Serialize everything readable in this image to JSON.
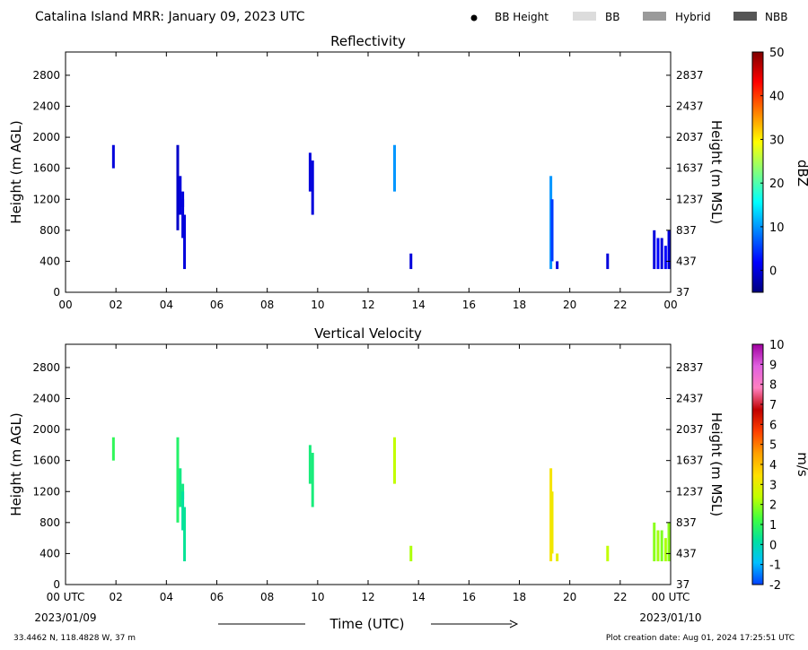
{
  "header": {
    "title": "Catalina Island MRR:  January 09, 2023 UTC",
    "legend": [
      {
        "kind": "dot",
        "label": "BB Height",
        "color": "#000000"
      },
      {
        "kind": "swatch",
        "label": "BB",
        "color": "#dcdcdc"
      },
      {
        "kind": "swatch",
        "label": "Hybrid",
        "color": "#9a9a9a"
      },
      {
        "kind": "swatch",
        "label": "NBB",
        "color": "#555555"
      }
    ]
  },
  "x_axis": {
    "tick_labels": [
      "00",
      "02",
      "04",
      "06",
      "08",
      "10",
      "12",
      "14",
      "16",
      "18",
      "20",
      "22",
      "00"
    ],
    "bottom_first_label": "00 UTC",
    "bottom_last_label": "00 UTC",
    "start_date": "2023/01/09",
    "end_date": "2023/01/10",
    "label": "Time (UTC)"
  },
  "footer": {
    "location": "33.4462 N, 118.4828 W, 37 m",
    "creation": "Plot creation date: Aug 01, 2024 17:25:51 UTC"
  },
  "chart_data": [
    {
      "type": "heatmap",
      "title": "Reflectivity",
      "ylabel": "Height (m AGL)",
      "ylabel_right": "Height (m MSL)",
      "xlim": [
        0,
        24
      ],
      "ylim": [
        0,
        3100
      ],
      "yticks": [
        0,
        400,
        800,
        1200,
        1600,
        2000,
        2400,
        2800
      ],
      "yticks_right": [
        37,
        437,
        837,
        1237,
        1637,
        2037,
        2437,
        2837
      ],
      "colorbar": {
        "label": "dBZ",
        "min": -5,
        "max": 50,
        "ticks": [
          0,
          10,
          20,
          30,
          40,
          50
        ],
        "colors": [
          "#00007f",
          "#0000ff",
          "#007fff",
          "#00ffff",
          "#7fff7f",
          "#ffff00",
          "#ff7f00",
          "#ff0000",
          "#7f0000"
        ]
      },
      "columns": [
        {
          "t": 1.9,
          "segments": [
            [
              1600,
              1900,
              0
            ]
          ]
        },
        {
          "t": 4.45,
          "segments": [
            [
              800,
              1900,
              -1
            ]
          ]
        },
        {
          "t": 4.55,
          "segments": [
            [
              1000,
              1500,
              0
            ]
          ]
        },
        {
          "t": 4.65,
          "segments": [
            [
              1100,
              1300,
              0
            ],
            [
              700,
              1200,
              0
            ]
          ]
        },
        {
          "t": 4.72,
          "segments": [
            [
              300,
              1000,
              0
            ]
          ]
        },
        {
          "t": 9.7,
          "segments": [
            [
              1300,
              1800,
              0
            ]
          ]
        },
        {
          "t": 9.8,
          "segments": [
            [
              1000,
              1700,
              0
            ]
          ]
        },
        {
          "t": 13.05,
          "segments": [
            [
              1300,
              1900,
              10
            ]
          ]
        },
        {
          "t": 13.7,
          "segments": [
            [
              300,
              500,
              0
            ]
          ]
        },
        {
          "t": 19.25,
          "segments": [
            [
              300,
              1500,
              10
            ]
          ]
        },
        {
          "t": 19.3,
          "segments": [
            [
              400,
              1200,
              5
            ]
          ]
        },
        {
          "t": 19.5,
          "segments": [
            [
              300,
              400,
              0
            ]
          ]
        },
        {
          "t": 21.5,
          "segments": [
            [
              300,
              500,
              0
            ]
          ]
        },
        {
          "t": 23.35,
          "segments": [
            [
              300,
              800,
              0
            ]
          ]
        },
        {
          "t": 23.5,
          "segments": [
            [
              300,
              700,
              2
            ]
          ]
        },
        {
          "t": 23.65,
          "segments": [
            [
              300,
              700,
              0
            ]
          ]
        },
        {
          "t": 23.8,
          "segments": [
            [
              300,
              600,
              2
            ]
          ]
        },
        {
          "t": 23.93,
          "segments": [
            [
              300,
              800,
              0
            ]
          ]
        }
      ]
    },
    {
      "type": "heatmap",
      "title": "Vertical Velocity",
      "ylabel": "Height (m AGL)",
      "ylabel_right": "Height (m MSL)",
      "xlim": [
        0,
        24
      ],
      "ylim": [
        0,
        3100
      ],
      "yticks": [
        0,
        400,
        800,
        1200,
        1600,
        2000,
        2400,
        2800
      ],
      "yticks_right": [
        37,
        437,
        837,
        1237,
        1637,
        2037,
        2437,
        2837
      ],
      "colorbar": {
        "label": "m/s",
        "min": -2,
        "max": 10,
        "ticks": [
          -2,
          -1,
          0,
          1,
          2,
          3,
          4,
          5,
          6,
          7,
          8,
          9,
          10
        ],
        "colors": [
          "#0040ff",
          "#00c0ff",
          "#00e0a0",
          "#40ff40",
          "#c0ff00",
          "#ffe000",
          "#ffa000",
          "#ff4000",
          "#c00000",
          "#ff80c0",
          "#e060e0",
          "#a000a0"
        ]
      },
      "columns": [
        {
          "t": 1.9,
          "segments": [
            [
              1600,
              1900,
              1
            ]
          ]
        },
        {
          "t": 4.45,
          "segments": [
            [
              800,
              1900,
              0.8
            ]
          ]
        },
        {
          "t": 4.55,
          "segments": [
            [
              1000,
              1500,
              0.5
            ]
          ]
        },
        {
          "t": 4.65,
          "segments": [
            [
              1100,
              1300,
              0.5
            ],
            [
              700,
              1200,
              0.2
            ]
          ]
        },
        {
          "t": 4.72,
          "segments": [
            [
              300,
              1000,
              0.3
            ]
          ]
        },
        {
          "t": 9.7,
          "segments": [
            [
              1300,
              1800,
              0.6
            ]
          ]
        },
        {
          "t": 9.8,
          "segments": [
            [
              1000,
              1700,
              0.6
            ]
          ]
        },
        {
          "t": 13.05,
          "segments": [
            [
              1300,
              1900,
              2.4
            ]
          ]
        },
        {
          "t": 13.7,
          "segments": [
            [
              300,
              500,
              2.2
            ]
          ]
        },
        {
          "t": 19.25,
          "segments": [
            [
              300,
              1500,
              3.3
            ]
          ]
        },
        {
          "t": 19.3,
          "segments": [
            [
              400,
              1200,
              3.2
            ]
          ]
        },
        {
          "t": 19.5,
          "segments": [
            [
              300,
              400,
              3.0
            ]
          ]
        },
        {
          "t": 21.5,
          "segments": [
            [
              300,
              500,
              2.4
            ]
          ]
        },
        {
          "t": 23.35,
          "segments": [
            [
              300,
              800,
              1.9
            ]
          ]
        },
        {
          "t": 23.5,
          "segments": [
            [
              300,
              700,
              2.1
            ]
          ]
        },
        {
          "t": 23.65,
          "segments": [
            [
              300,
              700,
              1.8
            ]
          ]
        },
        {
          "t": 23.8,
          "segments": [
            [
              300,
              600,
              2.2
            ]
          ]
        },
        {
          "t": 23.93,
          "segments": [
            [
              300,
              800,
              1.9
            ]
          ]
        }
      ]
    }
  ]
}
